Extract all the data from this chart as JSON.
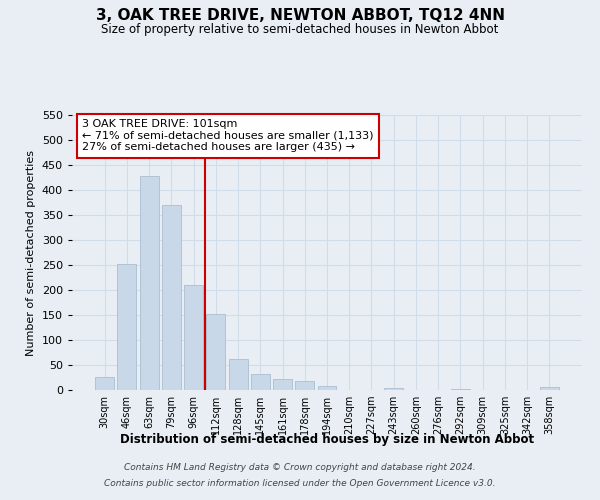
{
  "title": "3, OAK TREE DRIVE, NEWTON ABBOT, TQ12 4NN",
  "subtitle": "Size of property relative to semi-detached houses in Newton Abbot",
  "xlabel": "Distribution of semi-detached houses by size in Newton Abbot",
  "ylabel": "Number of semi-detached properties",
  "footer_line1": "Contains HM Land Registry data © Crown copyright and database right 2024.",
  "footer_line2": "Contains public sector information licensed under the Open Government Licence v3.0.",
  "annotation_title": "3 OAK TREE DRIVE: 101sqm",
  "annotation_line1": "← 71% of semi-detached houses are smaller (1,133)",
  "annotation_line2": "27% of semi-detached houses are larger (435) →",
  "bar_color": "#c8d8e8",
  "bar_edge_color": "#a0b8cc",
  "vline_color": "#cc0000",
  "vline_x": 4.5,
  "annotation_box_color": "#ffffff",
  "annotation_box_edge": "#cc0000",
  "categories": [
    "30sqm",
    "46sqm",
    "63sqm",
    "79sqm",
    "96sqm",
    "112sqm",
    "128sqm",
    "145sqm",
    "161sqm",
    "178sqm",
    "194sqm",
    "210sqm",
    "227sqm",
    "243sqm",
    "260sqm",
    "276sqm",
    "292sqm",
    "309sqm",
    "325sqm",
    "342sqm",
    "358sqm"
  ],
  "values": [
    26,
    253,
    428,
    370,
    210,
    152,
    63,
    33,
    23,
    19,
    8,
    1,
    0,
    5,
    1,
    0,
    3,
    0,
    0,
    0,
    6
  ],
  "ylim": [
    0,
    550
  ],
  "yticks": [
    0,
    50,
    100,
    150,
    200,
    250,
    300,
    350,
    400,
    450,
    500,
    550
  ],
  "grid_color": "#d0dce8",
  "bg_color": "#e8eef4"
}
